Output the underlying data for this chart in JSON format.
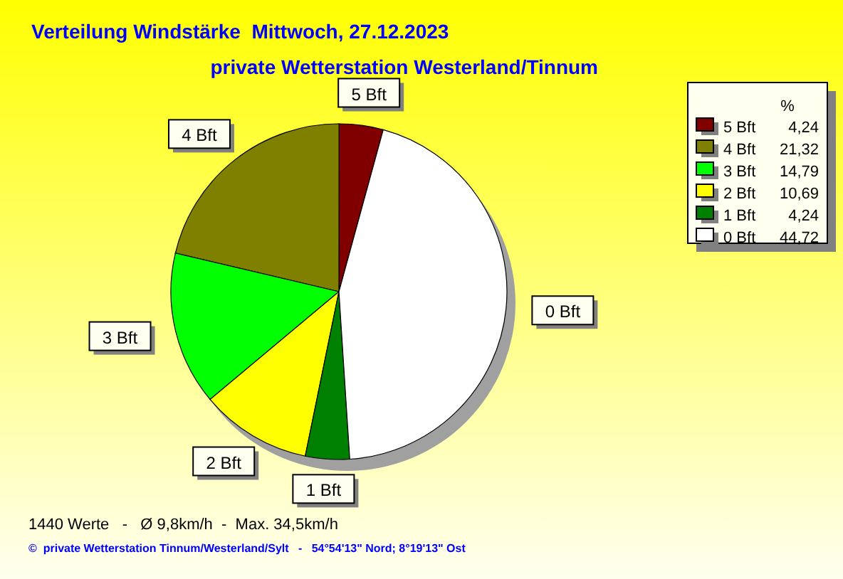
{
  "chart_data": {
    "type": "pie",
    "title": "Verteilung Windstärke  Mittwoch, 27.12.2023",
    "subtitle": "private Wetterstation Westerland/Tinnum",
    "categories": [
      "5 Bft",
      "4 Bft",
      "3 Bft",
      "2 Bft",
      "1 Bft",
      "0 Bft"
    ],
    "values": [
      4.24,
      21.32,
      14.79,
      10.69,
      4.24,
      44.72
    ],
    "value_labels": [
      "4,24",
      "21,32",
      "14,79",
      "10,69",
      "4,24",
      "44,72"
    ],
    "colors": [
      "#800000",
      "#808000",
      "#00ff00",
      "#ffff00",
      "#008000",
      "#ffffff"
    ],
    "legend_title": "%",
    "legend": "top right",
    "annotations": [
      "1440 Werte   -   Ø 9,8km/h  -  Max. 34,5km/h",
      "©  private Wetterstation Tinnum/Westerland/Sylt   -   54°54'13\" Nord; 8°19'13\" Ost"
    ]
  }
}
